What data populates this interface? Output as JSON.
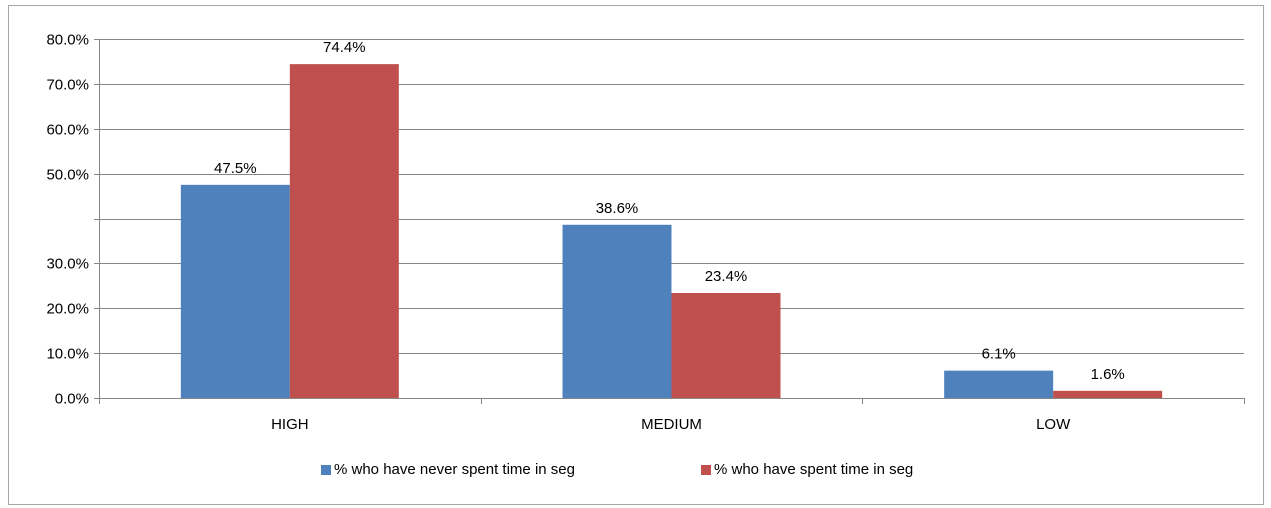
{
  "chart_data": {
    "type": "bar",
    "categories": [
      "HIGH",
      "MEDIUM",
      "LOW"
    ],
    "series": [
      {
        "name": "% who have never spent time in seg",
        "color": "#4f81bd",
        "values": [
          47.5,
          38.6,
          6.1
        ],
        "labels": [
          "47.5%",
          "38.6%",
          "6.1%"
        ]
      },
      {
        "name": "% who have spent time in seg",
        "color": "#c0504d",
        "values": [
          74.4,
          23.4,
          1.6
        ],
        "labels": [
          "74.4%",
          "23.4%",
          "1.6%"
        ]
      }
    ],
    "ylim": [
      0,
      80
    ],
    "yticks": [
      {
        "value": 80,
        "label": "80.0%"
      },
      {
        "value": 70,
        "label": "70.0%"
      },
      {
        "value": 60,
        "label": "60.0%"
      },
      {
        "value": 50,
        "label": "50.0%"
      },
      {
        "value": 40,
        "label": ""
      },
      {
        "value": 30,
        "label": "30.0%"
      },
      {
        "value": 20,
        "label": "20.0%"
      },
      {
        "value": 10,
        "label": "10.0%"
      },
      {
        "value": 0,
        "label": "0.0%"
      }
    ],
    "grid": true,
    "legend_position": "bottom",
    "title": "",
    "xlabel": "",
    "ylabel": ""
  }
}
